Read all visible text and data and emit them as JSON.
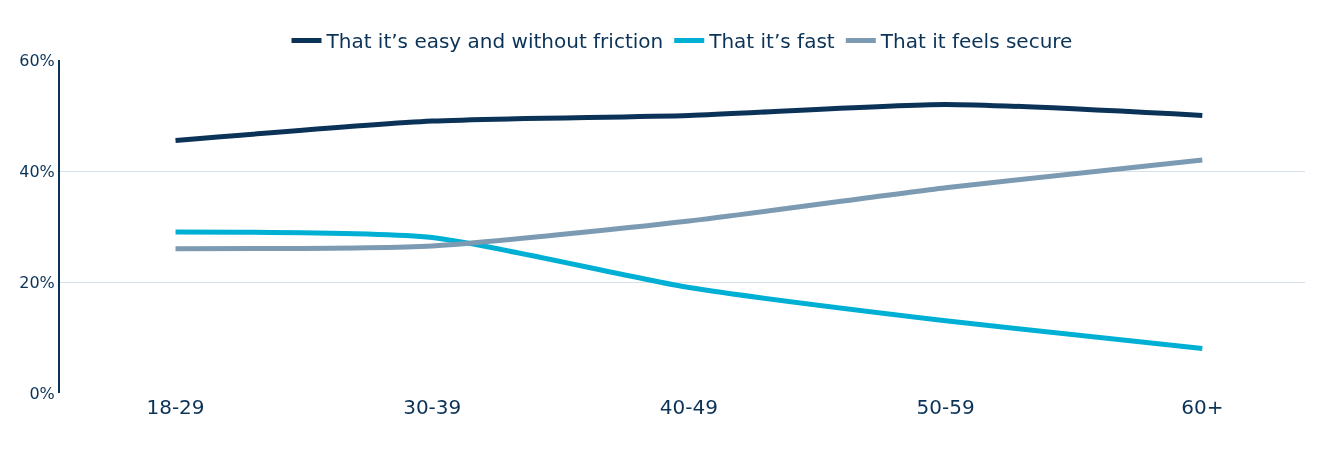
{
  "chart_data": {
    "type": "line",
    "categories": [
      "18-29",
      "30-39",
      "40-49",
      "50-59",
      "60+"
    ],
    "series": [
      {
        "name": "That it’s easy and without friction",
        "color": "#0b3358",
        "values": [
          45.5,
          49,
          50,
          52,
          50
        ]
      },
      {
        "name": "That it’s fast",
        "color": "#00b0d4",
        "values": [
          29,
          28,
          19,
          13,
          8
        ]
      },
      {
        "name": "That it feels secure",
        "color": "#7c9bb2",
        "values": [
          26,
          26.5,
          31,
          37,
          42
        ]
      }
    ],
    "ylim": [
      0,
      60
    ],
    "yticks": [
      {
        "value": 0,
        "label": "0%"
      },
      {
        "value": 20,
        "label": "20%"
      },
      {
        "value": 40,
        "label": "40%"
      },
      {
        "value": 60,
        "label": "60%"
      }
    ],
    "grid": "y",
    "legend": "top",
    "marker": "none",
    "line_style": "solid"
  }
}
